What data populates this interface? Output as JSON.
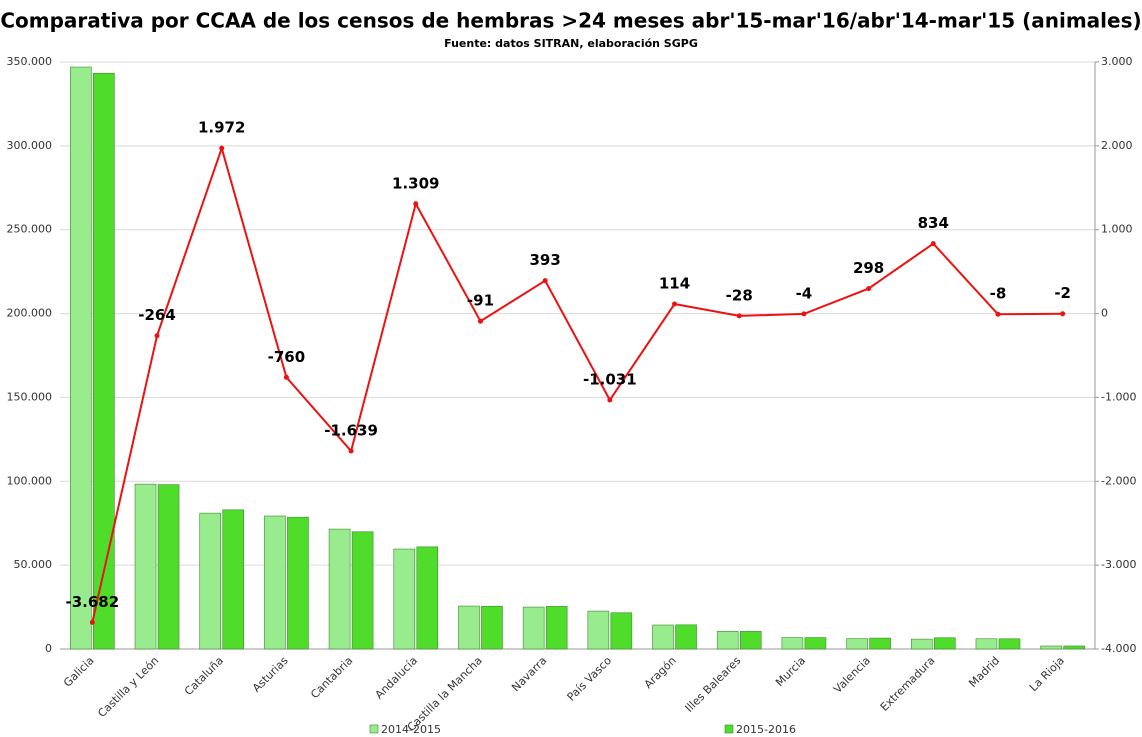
{
  "chart_data": {
    "type": "bar",
    "title": "Comparativa por CCAA de los censos de hembras >24 meses abr'15-mar'16/abr'14-mar'15 (animales)",
    "subtitle": "Fuente: datos SITRAN, elaboración SGPG",
    "categories": [
      "Galicia",
      "Castilla y León",
      "Cataluña",
      "Asturias",
      "Cantabria",
      "Andalucía",
      "Castilla la Mancha",
      "Navarra",
      "País Vasco",
      "Aragón",
      "Illes Baleares",
      "Murcia",
      "Valencia",
      "Extremadura",
      "Madrid",
      "La Rioja"
    ],
    "series": [
      {
        "name": "2014-2015",
        "color": "#98ec8e",
        "values": [
          347000,
          98300,
          81000,
          79300,
          71500,
          59600,
          25600,
          25000,
          22600,
          14300,
          10500,
          6800,
          6200,
          5900,
          6100,
          1800
        ]
      },
      {
        "name": "2015-2016",
        "color": "#4fdc2a",
        "values": [
          343300,
          98000,
          83000,
          78600,
          69900,
          60900,
          25500,
          25400,
          21600,
          14400,
          10500,
          6800,
          6500,
          6700,
          6100,
          1800
        ]
      },
      {
        "type": "line",
        "axis": "y2",
        "color": "#ee1111",
        "values": [
          -3682,
          -264,
          1972,
          -760,
          -1639,
          1309,
          -91,
          393,
          -1031,
          114,
          -28,
          -4,
          298,
          834,
          -8,
          -2
        ],
        "value_labels": [
          "-3.682",
          "-264",
          "1.972",
          "-760",
          "-1.639",
          "1.309",
          "-91",
          "393",
          "-1.031",
          "114",
          "-28",
          "-4",
          "298",
          "834",
          "-8",
          "-2"
        ]
      }
    ],
    "ylim": [
      0,
      350000
    ],
    "yticks": [
      0,
      {
        "value": 50000,
        "label": "50.000"
      },
      {
        "value": 100000,
        "label": "100.000"
      },
      {
        "value": 150000,
        "label": "150.000"
      },
      {
        "value": 200000,
        "label": "200.000"
      },
      {
        "value": 250000,
        "label": "250.000"
      },
      {
        "value": 300000,
        "label": "300.000"
      },
      {
        "value": 350000,
        "label": "350.000"
      }
    ],
    "y2lim": [
      -4000,
      3000
    ],
    "y2ticks": [
      {
        "value": -4000,
        "label": "-4.000"
      },
      {
        "value": -3000,
        "label": "-3.000"
      },
      {
        "value": -2000,
        "label": "-2.000"
      },
      {
        "value": -1000,
        "label": "-1.000"
      },
      0,
      {
        "value": 1000,
        "label": "1.000"
      },
      {
        "value": 2000,
        "label": "2.000"
      },
      {
        "value": 3000,
        "label": "3.000"
      }
    ],
    "grid": true,
    "legend": "bottom"
  }
}
